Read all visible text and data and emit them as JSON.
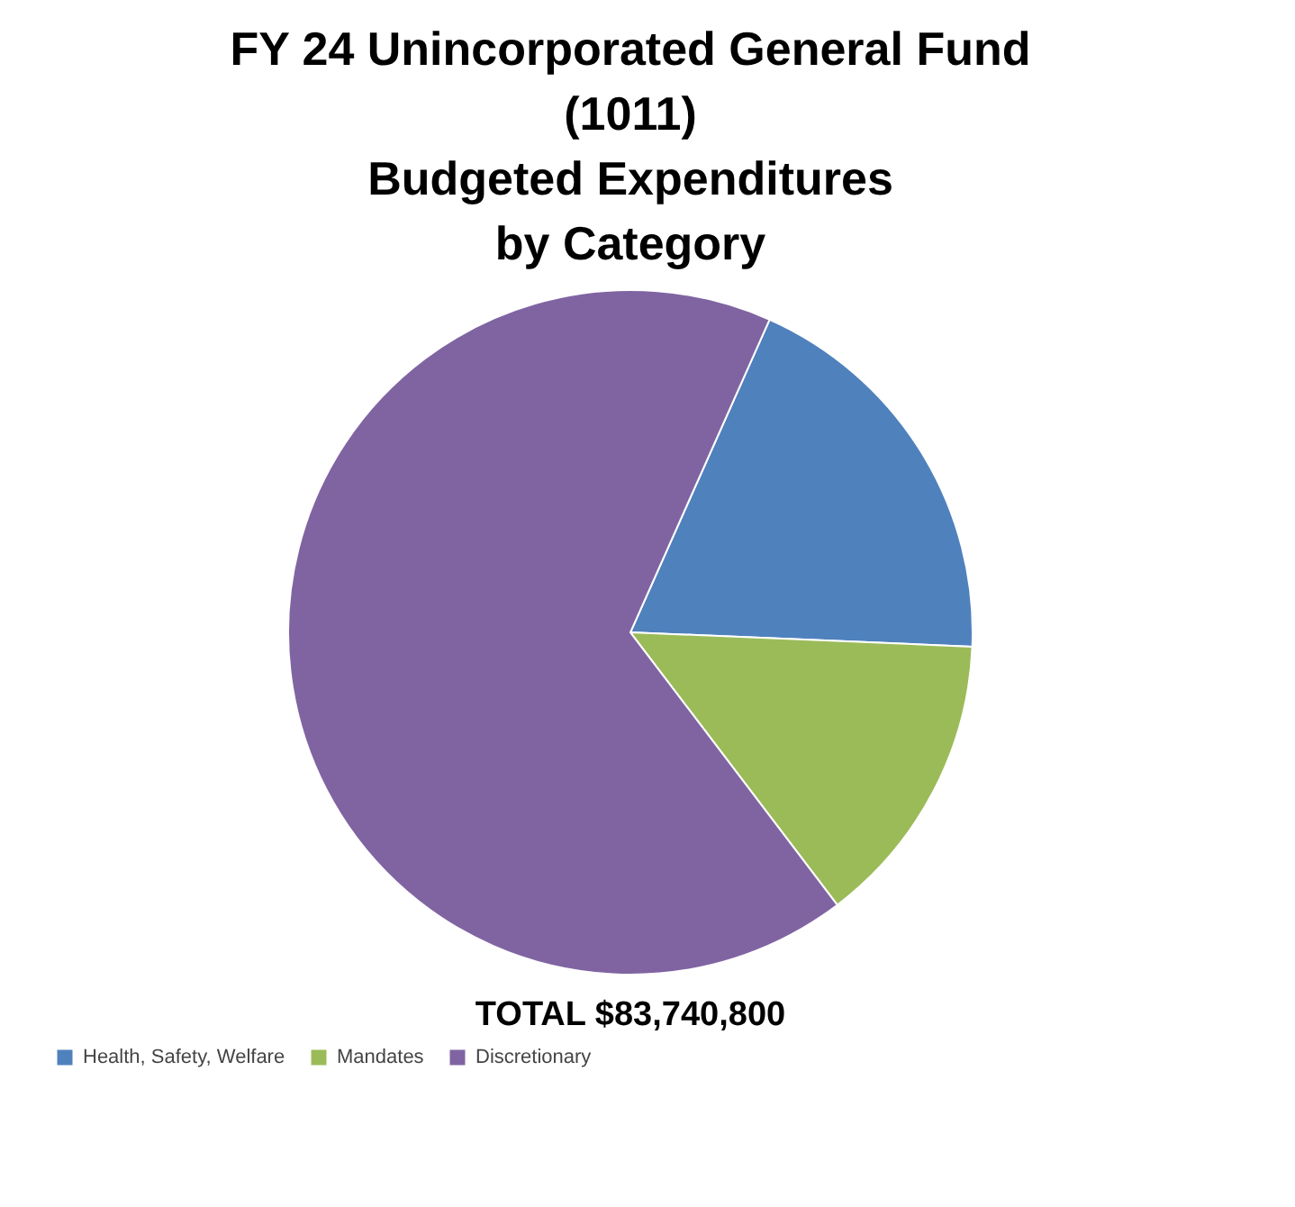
{
  "chart_data": {
    "type": "pie",
    "title": "FY 24 Unincorporated General Fund\n(1011)\nBudgeted Expenditures\nby Category",
    "categories": [
      "Health, Safety, Welfare",
      "Mandates",
      "Discretionary"
    ],
    "values": [
      19,
      14,
      67
    ],
    "colors": [
      "#4f81bd",
      "#9bbb59",
      "#8064a2"
    ],
    "annotations": [
      "TOTAL $83,740,800"
    ],
    "legend": "bottom"
  }
}
